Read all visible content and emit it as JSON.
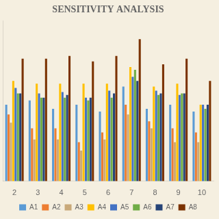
{
  "chart_data": {
    "type": "bar",
    "title": "SENSITIVITY ANALYSIS",
    "categories": [
      "2",
      "3",
      "4",
      "5",
      "6",
      "7",
      "8",
      "9",
      "10"
    ],
    "series": [
      {
        "name": "A1",
        "color": "#5b9bd5",
        "values": [
          0.55,
          0.58,
          0.52,
          0.55,
          0.5,
          0.68,
          0.52,
          0.55,
          0.5
        ]
      },
      {
        "name": "A2",
        "color": "#ed7d31",
        "values": [
          0.48,
          0.38,
          0.38,
          0.28,
          0.35,
          0.55,
          0.43,
          0.38,
          0.35
        ]
      },
      {
        "name": "A3",
        "color": "#c9a97a",
        "values": [
          0.42,
          0.3,
          0.3,
          0.22,
          0.3,
          0.48,
          0.38,
          0.28,
          0.28
        ]
      },
      {
        "name": "A4",
        "color": "#ffc000",
        "values": [
          0.72,
          0.7,
          0.7,
          0.7,
          0.7,
          0.82,
          0.68,
          0.7,
          0.55
        ]
      },
      {
        "name": "A5",
        "color": "#4472c4",
        "values": [
          0.67,
          0.63,
          0.64,
          0.6,
          0.65,
          0.75,
          0.65,
          0.62,
          0.55
        ]
      },
      {
        "name": "A6",
        "color": "#70ad47",
        "values": [
          0.63,
          0.6,
          0.6,
          0.58,
          0.6,
          0.8,
          0.62,
          0.63,
          0.52
        ]
      },
      {
        "name": "A7",
        "color": "#264478",
        "values": [
          0.63,
          0.6,
          0.62,
          0.6,
          0.63,
          0.72,
          0.63,
          0.63,
          0.55
        ]
      },
      {
        "name": "A8",
        "color": "#7b3200",
        "values": [
          0.88,
          0.88,
          0.9,
          0.86,
          0.9,
          1.02,
          0.84,
          0.88,
          0.72
        ]
      }
    ],
    "ylim": [
      0,
      1.15
    ],
    "grid": false,
    "legend": "bottom",
    "tick_labels": "x"
  }
}
